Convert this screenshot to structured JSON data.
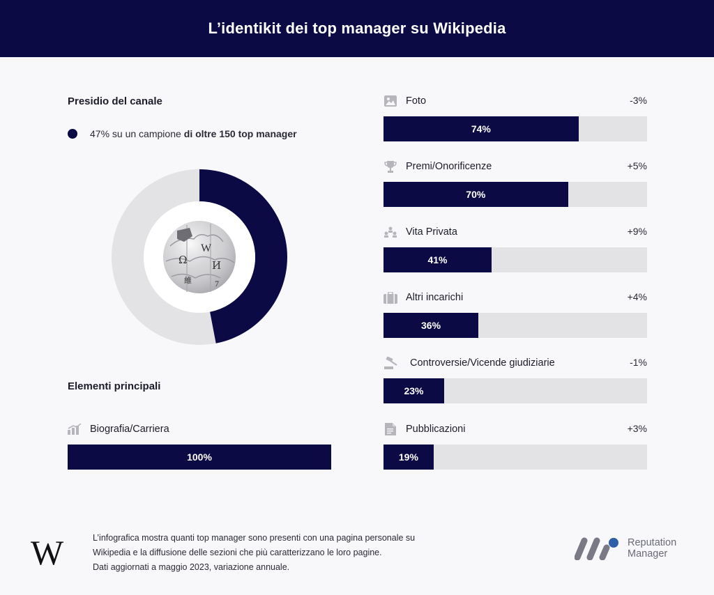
{
  "header": {
    "title": "L’identikit dei top manager su Wikipedia"
  },
  "presidio": {
    "title": "Presidio del canale",
    "legend_value": "47%",
    "legend_pre": "su un campione",
    "legend_bold": "di oltre 150 top manager"
  },
  "elementi": {
    "title": "Elementi principali"
  },
  "chart_data": [
    {
      "type": "pie",
      "title": "Presidio del canale",
      "values": [
        47,
        53
      ],
      "labels": [
        "47% su un campione di oltre 150 top manager",
        ""
      ],
      "colors": [
        "#0b0a45",
        "#e3e3e6"
      ],
      "center_icon": "wikipedia-globe-icon"
    },
    {
      "type": "bar",
      "orientation": "horizontal",
      "title": "Elementi principali",
      "xlim": [
        0,
        100
      ],
      "items": [
        {
          "label": "Biografia/Carriera",
          "value": 100,
          "value_label": "100%",
          "change": "",
          "icon": "growth-chart-icon"
        },
        {
          "label": "Foto",
          "value": 74,
          "value_label": "74%",
          "change": "-3%",
          "icon": "image-icon"
        },
        {
          "label": "Premi/Onorificenze",
          "value": 70,
          "value_label": "70%",
          "change": "+5%",
          "icon": "trophy-icon"
        },
        {
          "label": "Vita Privata",
          "value": 41,
          "value_label": "41%",
          "change": "+9%",
          "icon": "family-tree-icon"
        },
        {
          "label": "Altri incarichi",
          "value": 36,
          "value_label": "36%",
          "change": "+4%",
          "icon": "briefcase-icon"
        },
        {
          "label": "Controversie/Vicende giudiziarie",
          "value": 23,
          "value_label": "23%",
          "change": "-1%",
          "icon": "gavel-icon"
        },
        {
          "label": "Pubblicazioni",
          "value": 19,
          "value_label": "19%",
          "change": "+3%",
          "icon": "document-icon"
        }
      ],
      "fill_color": "#0b0a45",
      "track_color": "#e3e3e6"
    }
  ],
  "footer": {
    "line1": "L’infografica mostra quanti top manager sono presenti con una pagina personale su",
    "line2": "Wikipedia e la diffusione delle sezioni che più caratterizzano le loro pagine.",
    "line3": "Dati aggiornati a maggio 2023, variazione annuale.",
    "wiki_logo": "W",
    "brand_line1": "Reputation",
    "brand_line2": "Manager"
  }
}
